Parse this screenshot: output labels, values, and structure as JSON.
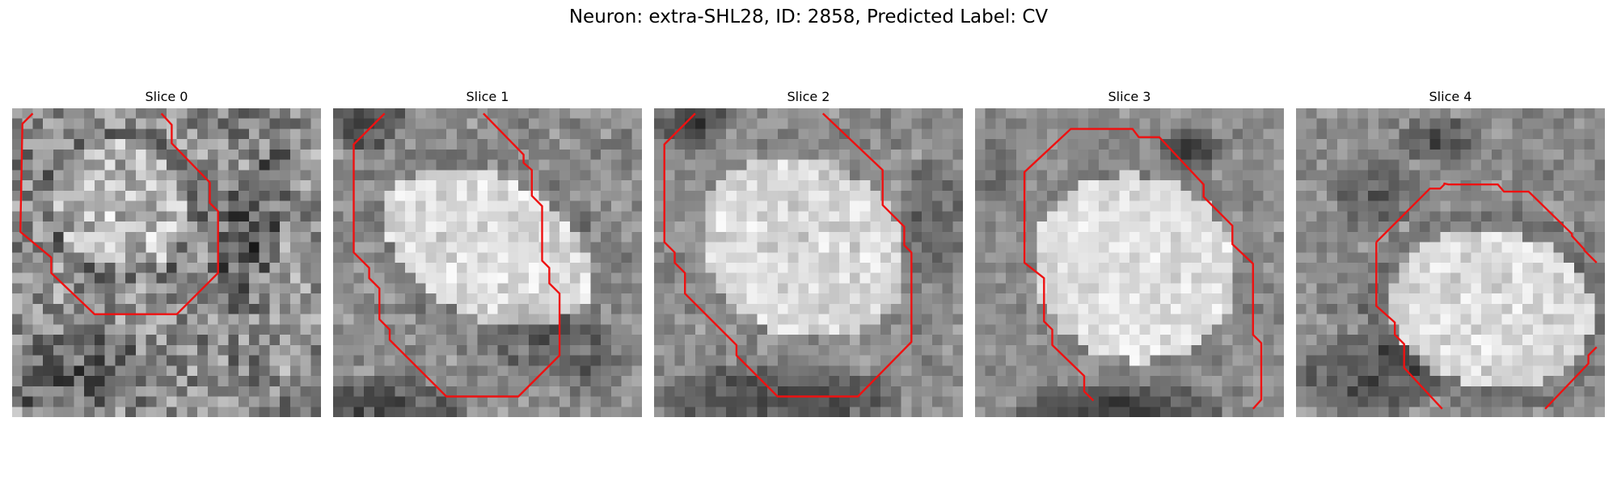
{
  "title": "Neuron: extra-SHL28, ID: 2858, Predicted Label: CV",
  "outline_color": "#ee1111",
  "panels": [
    {
      "title": "Slice 0"
    },
    {
      "title": "Slice 1"
    },
    {
      "title": "Slice 2"
    },
    {
      "title": "Slice 3"
    },
    {
      "title": "Slice 4"
    }
  ]
}
